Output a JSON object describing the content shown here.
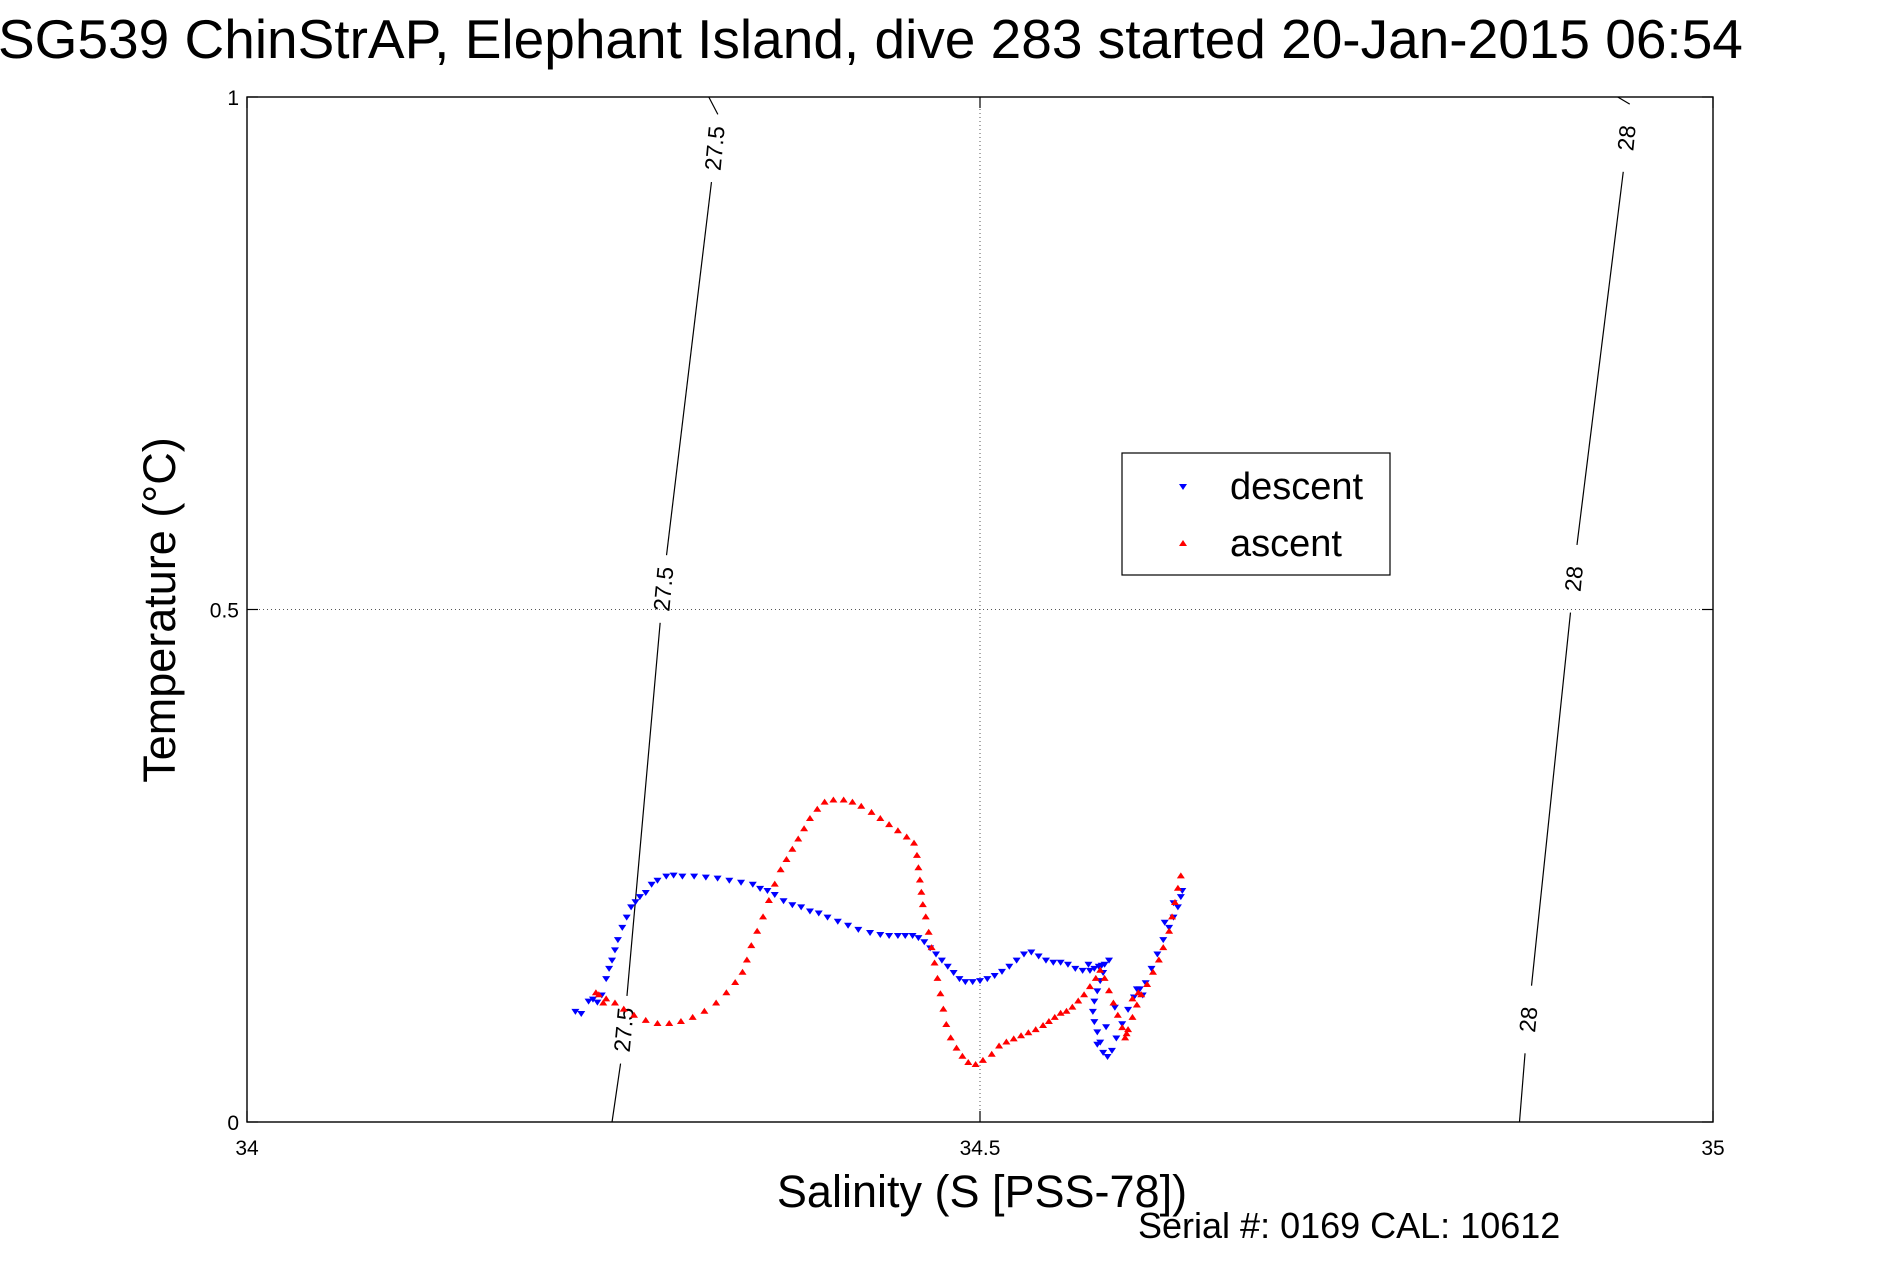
{
  "title": "SG539 ChinStrAP, Elephant Island, dive 283 started 20-Jan-2015 06:54",
  "footer": "Serial #: 0169 CAL: 10612",
  "chart_data": {
    "type": "scatter",
    "xlabel": "Salinity (S [PSS-78])",
    "ylabel": "Temperature (°C)",
    "xlim": [
      34,
      35
    ],
    "ylim": [
      0,
      1
    ],
    "xticks": [
      34,
      34.5,
      35
    ],
    "xtick_labels": [
      "34",
      "34.5",
      "35"
    ],
    "yticks": [
      0,
      0.5,
      1
    ],
    "ytick_labels": [
      "0",
      "0.5",
      "1"
    ],
    "grid": true,
    "legend_position": "center-right",
    "legend": [
      {
        "label": "descent",
        "marker": "triangle-down",
        "color": "#0000ff"
      },
      {
        "label": "ascent",
        "marker": "triangle-up",
        "color": "#ff0000"
      }
    ],
    "density_contours": [
      {
        "level": "27.5",
        "points": [
          [
            34.249,
            0.0
          ],
          [
            34.315,
            1.0
          ]
        ],
        "labels": [
          [
            34.257,
            0.09
          ],
          [
            34.284,
            0.52
          ],
          [
            34.319,
            0.95
          ]
        ]
      },
      {
        "level": "28",
        "points": [
          [
            34.868,
            0.0
          ],
          [
            34.935,
            1.0
          ]
        ],
        "labels": [
          [
            34.874,
            0.1
          ],
          [
            34.905,
            0.53
          ],
          [
            34.941,
            0.96
          ]
        ]
      }
    ],
    "series": [
      {
        "name": "descent",
        "marker": "triangle-down",
        "color": "#0000ff",
        "points": [
          [
            34.224,
            0.108
          ],
          [
            34.228,
            0.106
          ],
          [
            34.233,
            0.118
          ],
          [
            34.236,
            0.12
          ],
          [
            34.239,
            0.117
          ],
          [
            34.242,
            0.124
          ],
          [
            34.245,
            0.14
          ],
          [
            34.247,
            0.15
          ],
          [
            34.249,
            0.158
          ],
          [
            34.251,
            0.168
          ],
          [
            34.253,
            0.178
          ],
          [
            34.256,
            0.19
          ],
          [
            34.259,
            0.2
          ],
          [
            34.262,
            0.21
          ],
          [
            34.265,
            0.215
          ],
          [
            34.268,
            0.22
          ],
          [
            34.272,
            0.224
          ],
          [
            34.276,
            0.232
          ],
          [
            34.28,
            0.236
          ],
          [
            34.286,
            0.24
          ],
          [
            34.291,
            0.241
          ],
          [
            34.297,
            0.24
          ],
          [
            34.305,
            0.24
          ],
          [
            34.313,
            0.239
          ],
          [
            34.321,
            0.238
          ],
          [
            34.329,
            0.236
          ],
          [
            34.337,
            0.234
          ],
          [
            34.345,
            0.232
          ],
          [
            34.35,
            0.228
          ],
          [
            34.355,
            0.226
          ],
          [
            34.36,
            0.222
          ],
          [
            34.366,
            0.216
          ],
          [
            34.372,
            0.212
          ],
          [
            34.378,
            0.21
          ],
          [
            34.384,
            0.206
          ],
          [
            34.39,
            0.204
          ],
          [
            34.396,
            0.2
          ],
          [
            34.403,
            0.196
          ],
          [
            34.41,
            0.192
          ],
          [
            34.417,
            0.188
          ],
          [
            34.425,
            0.185
          ],
          [
            34.432,
            0.183
          ],
          [
            34.438,
            0.182
          ],
          [
            34.444,
            0.182
          ],
          [
            34.449,
            0.182
          ],
          [
            34.454,
            0.182
          ],
          [
            34.458,
            0.18
          ],
          [
            34.462,
            0.176
          ],
          [
            34.466,
            0.17
          ],
          [
            34.47,
            0.164
          ],
          [
            34.474,
            0.158
          ],
          [
            34.478,
            0.152
          ],
          [
            34.482,
            0.146
          ],
          [
            34.486,
            0.14
          ],
          [
            34.49,
            0.137
          ],
          [
            34.495,
            0.137
          ],
          [
            34.5,
            0.138
          ],
          [
            34.505,
            0.14
          ],
          [
            34.51,
            0.143
          ],
          [
            34.515,
            0.147
          ],
          [
            34.52,
            0.152
          ],
          [
            34.525,
            0.158
          ],
          [
            34.53,
            0.164
          ],
          [
            34.535,
            0.166
          ],
          [
            34.54,
            0.162
          ],
          [
            34.545,
            0.158
          ],
          [
            34.55,
            0.156
          ],
          [
            34.555,
            0.156
          ],
          [
            34.56,
            0.154
          ],
          [
            34.565,
            0.15
          ],
          [
            34.57,
            0.148
          ],
          [
            34.575,
            0.148
          ],
          [
            34.578,
            0.15
          ],
          [
            34.581,
            0.152
          ],
          [
            34.583,
            0.153
          ],
          [
            34.585,
            0.154
          ],
          [
            34.584,
            0.146
          ],
          [
            34.582,
            0.138
          ],
          [
            34.58,
            0.128
          ],
          [
            34.578,
            0.118
          ],
          [
            34.577,
            0.108
          ],
          [
            34.578,
            0.098
          ],
          [
            34.58,
            0.088
          ],
          [
            34.582,
            0.078
          ],
          [
            34.584,
            0.068
          ],
          [
            34.587,
            0.064
          ],
          [
            34.59,
            0.07
          ],
          [
            34.593,
            0.082
          ],
          [
            34.597,
            0.096
          ],
          [
            34.601,
            0.11
          ],
          [
            34.605,
            0.122
          ],
          [
            34.609,
            0.13
          ],
          [
            34.613,
            0.136
          ],
          [
            34.617,
            0.15
          ],
          [
            34.621,
            0.164
          ],
          [
            34.625,
            0.178
          ],
          [
            34.629,
            0.19
          ],
          [
            34.632,
            0.2
          ],
          [
            34.635,
            0.21
          ],
          [
            34.637,
            0.22
          ],
          [
            34.638,
            0.226
          ],
          [
            34.58,
            0.076
          ],
          [
            34.586,
            0.093
          ],
          [
            34.592,
            0.112
          ],
          [
            34.607,
            0.13
          ],
          [
            34.611,
            0.124
          ],
          [
            34.588,
            0.158
          ],
          [
            34.574,
            0.154
          ],
          [
            34.626,
            0.195
          ],
          [
            34.632,
            0.214
          ]
        ]
      },
      {
        "name": "ascent",
        "marker": "triangle-up",
        "color": "#ff0000",
        "points": [
          [
            34.637,
            0.24
          ],
          [
            34.635,
            0.228
          ],
          [
            34.633,
            0.214
          ],
          [
            34.631,
            0.2
          ],
          [
            34.629,
            0.186
          ],
          [
            34.625,
            0.17
          ],
          [
            34.622,
            0.158
          ],
          [
            34.618,
            0.146
          ],
          [
            34.614,
            0.134
          ],
          [
            34.61,
            0.124
          ],
          [
            34.607,
            0.114
          ],
          [
            34.604,
            0.102
          ],
          [
            34.601,
            0.09
          ],
          [
            34.599,
            0.082
          ],
          [
            34.597,
            0.092
          ],
          [
            34.594,
            0.104
          ],
          [
            34.591,
            0.116
          ],
          [
            34.588,
            0.128
          ],
          [
            34.585,
            0.14
          ],
          [
            34.582,
            0.148
          ],
          [
            34.579,
            0.14
          ],
          [
            34.575,
            0.132
          ],
          [
            34.571,
            0.124
          ],
          [
            34.567,
            0.118
          ],
          [
            34.563,
            0.112
          ],
          [
            34.559,
            0.108
          ],
          [
            34.555,
            0.106
          ],
          [
            34.551,
            0.102
          ],
          [
            34.547,
            0.098
          ],
          [
            34.543,
            0.094
          ],
          [
            34.538,
            0.09
          ],
          [
            34.533,
            0.087
          ],
          [
            34.528,
            0.084
          ],
          [
            34.523,
            0.081
          ],
          [
            34.518,
            0.078
          ],
          [
            34.513,
            0.074
          ],
          [
            34.508,
            0.066
          ],
          [
            34.502,
            0.06
          ],
          [
            34.497,
            0.056
          ],
          [
            34.492,
            0.058
          ],
          [
            34.488,
            0.064
          ],
          [
            34.484,
            0.072
          ],
          [
            34.48,
            0.082
          ],
          [
            34.477,
            0.095
          ],
          [
            34.475,
            0.11
          ],
          [
            34.473,
            0.125
          ],
          [
            34.471,
            0.14
          ],
          [
            34.469,
            0.155
          ],
          [
            34.467,
            0.17
          ],
          [
            34.465,
            0.185
          ],
          [
            34.463,
            0.2
          ],
          [
            34.461,
            0.212
          ],
          [
            34.46,
            0.224
          ],
          [
            34.459,
            0.236
          ],
          [
            34.458,
            0.248
          ],
          [
            34.457,
            0.26
          ],
          [
            34.455,
            0.272
          ],
          [
            34.45,
            0.278
          ],
          [
            34.444,
            0.284
          ],
          [
            34.438,
            0.29
          ],
          [
            34.432,
            0.296
          ],
          [
            34.426,
            0.302
          ],
          [
            34.419,
            0.308
          ],
          [
            34.413,
            0.312
          ],
          [
            34.407,
            0.314
          ],
          [
            34.4,
            0.314
          ],
          [
            34.394,
            0.312
          ],
          [
            34.389,
            0.305
          ],
          [
            34.384,
            0.296
          ],
          [
            34.38,
            0.286
          ],
          [
            34.376,
            0.276
          ],
          [
            34.372,
            0.266
          ],
          [
            34.368,
            0.256
          ],
          [
            34.364,
            0.246
          ],
          [
            34.36,
            0.232
          ],
          [
            34.356,
            0.216
          ],
          [
            34.352,
            0.2
          ],
          [
            34.348,
            0.186
          ],
          [
            34.344,
            0.172
          ],
          [
            34.341,
            0.158
          ],
          [
            34.338,
            0.146
          ],
          [
            34.333,
            0.136
          ],
          [
            34.327,
            0.126
          ],
          [
            34.32,
            0.116
          ],
          [
            34.312,
            0.108
          ],
          [
            34.304,
            0.102
          ],
          [
            34.296,
            0.098
          ],
          [
            34.288,
            0.096
          ],
          [
            34.28,
            0.096
          ],
          [
            34.272,
            0.099
          ],
          [
            34.264,
            0.104
          ],
          [
            34.257,
            0.11
          ],
          [
            34.251,
            0.116
          ],
          [
            34.245,
            0.12
          ],
          [
            34.24,
            0.124
          ],
          [
            34.238,
            0.126
          ],
          [
            34.243,
            0.116
          ],
          [
            34.608,
            0.126
          ],
          [
            34.604,
            0.12
          ],
          [
            34.6,
            0.086
          ]
        ]
      }
    ]
  }
}
